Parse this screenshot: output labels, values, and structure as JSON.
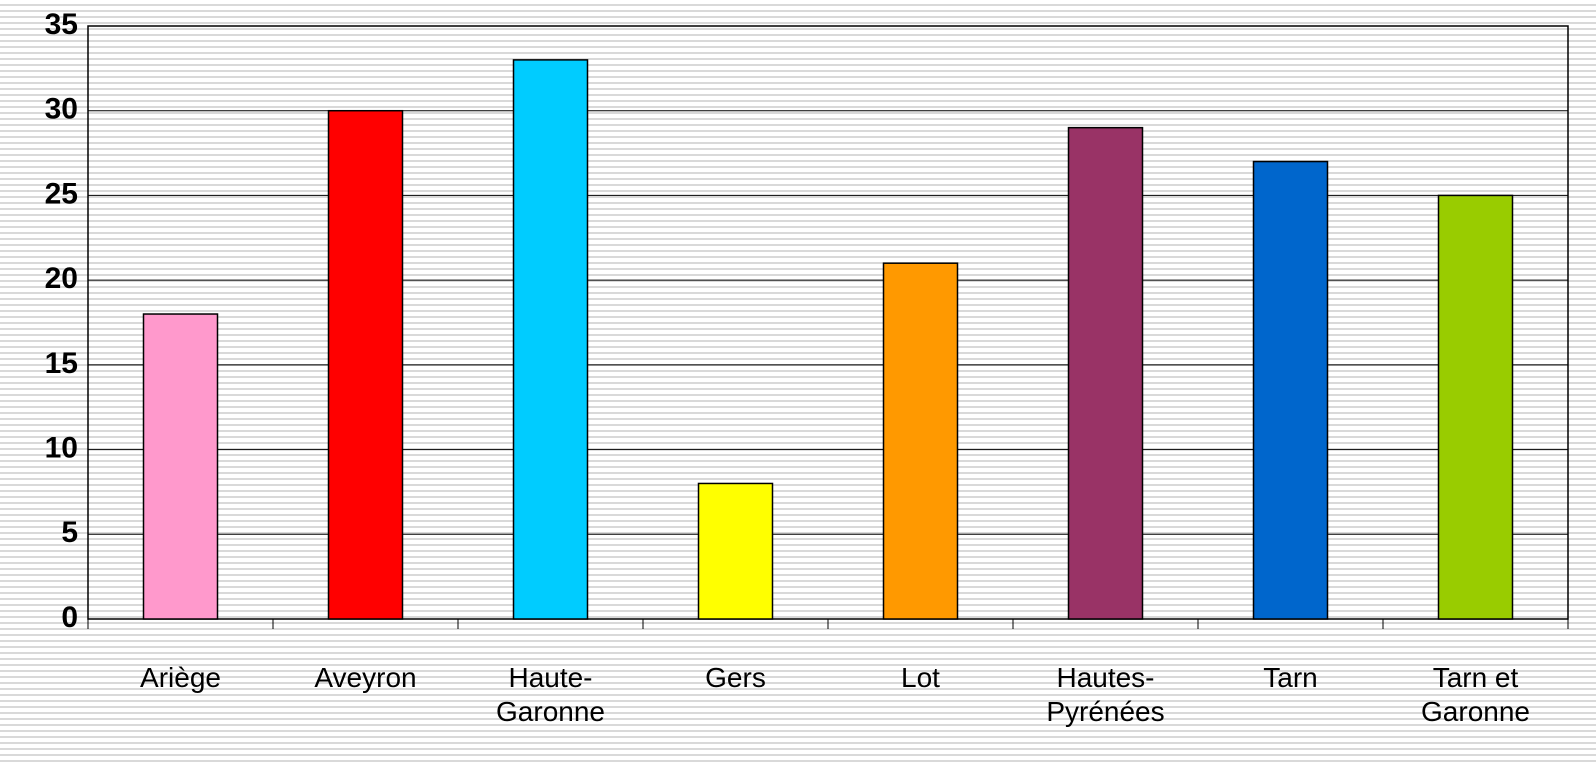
{
  "chart_data": {
    "type": "bar",
    "categories": [
      "Ariège",
      "Aveyron",
      "Haute-\nGaronne",
      "Gers",
      "Lot",
      "Hautes-\nPyrénées",
      "Tarn",
      "Tarn et\nGaronne"
    ],
    "values": [
      18,
      30,
      33,
      8,
      21,
      29,
      27,
      25
    ],
    "colors": [
      "#ff99cc",
      "#ff0000",
      "#00ccff",
      "#ffff00",
      "#ff9900",
      "#993366",
      "#0066cc",
      "#99cc00"
    ],
    "ylim": [
      0,
      35
    ],
    "yticks": [
      0,
      5,
      10,
      15,
      20,
      25,
      30,
      35
    ],
    "grid": true
  }
}
